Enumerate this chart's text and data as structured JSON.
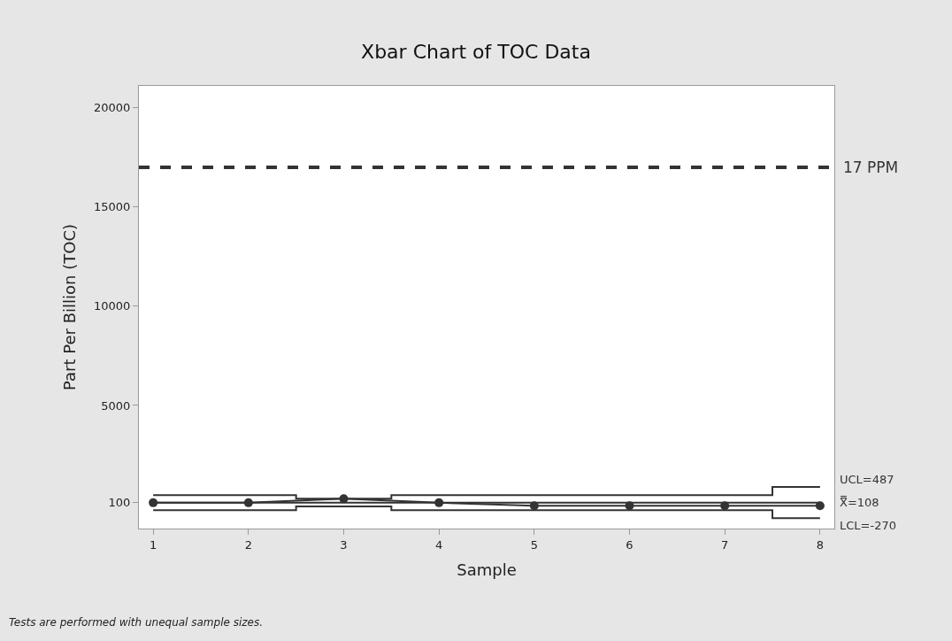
{
  "chart_data": {
    "type": "line",
    "title": "Xbar Chart of TOC Data",
    "xlabel": "Sample",
    "ylabel": "Part Per Billion (TOC)",
    "x": [
      1,
      2,
      3,
      4,
      5,
      6,
      7,
      8
    ],
    "series": [
      {
        "color": "#333333",
        "values": [
          100,
          100,
          300,
          100,
          -50,
          -50,
          -50,
          -50
        ],
        "marker": "circle"
      },
      {
        "name": "UCL=487",
        "type": "step",
        "color": "#333333",
        "values": [
          487,
          487,
          300,
          487,
          487,
          487,
          487,
          900
        ],
        "marker": "none"
      },
      {
        "name": "X̿=108",
        "type": "line",
        "color": "#333333",
        "values": [
          108,
          108,
          108,
          108,
          108,
          108,
          108,
          108
        ],
        "marker": "none"
      },
      {
        "name": "LCL=-270",
        "type": "step",
        "color": "#333333",
        "values": [
          -270,
          -270,
          -80,
          -270,
          -270,
          -270,
          -270,
          -680
        ],
        "marker": "none"
      }
    ],
    "ref_lines": [
      {
        "axis": "y",
        "value": 17000,
        "label": "17 PPM",
        "color": "#333333",
        "line_style": "dashed"
      }
    ],
    "annotations": [
      "Tests are performed with unequal sample sizes."
    ],
    "xlim": [
      0.85,
      8.15
    ],
    "xticks": [
      1,
      2,
      3,
      4,
      5,
      6,
      7,
      8
    ],
    "ylim": [
      -1200,
      21100
    ],
    "yticks": [
      100,
      5000,
      10000,
      15000,
      20000
    ],
    "legend": false
  }
}
